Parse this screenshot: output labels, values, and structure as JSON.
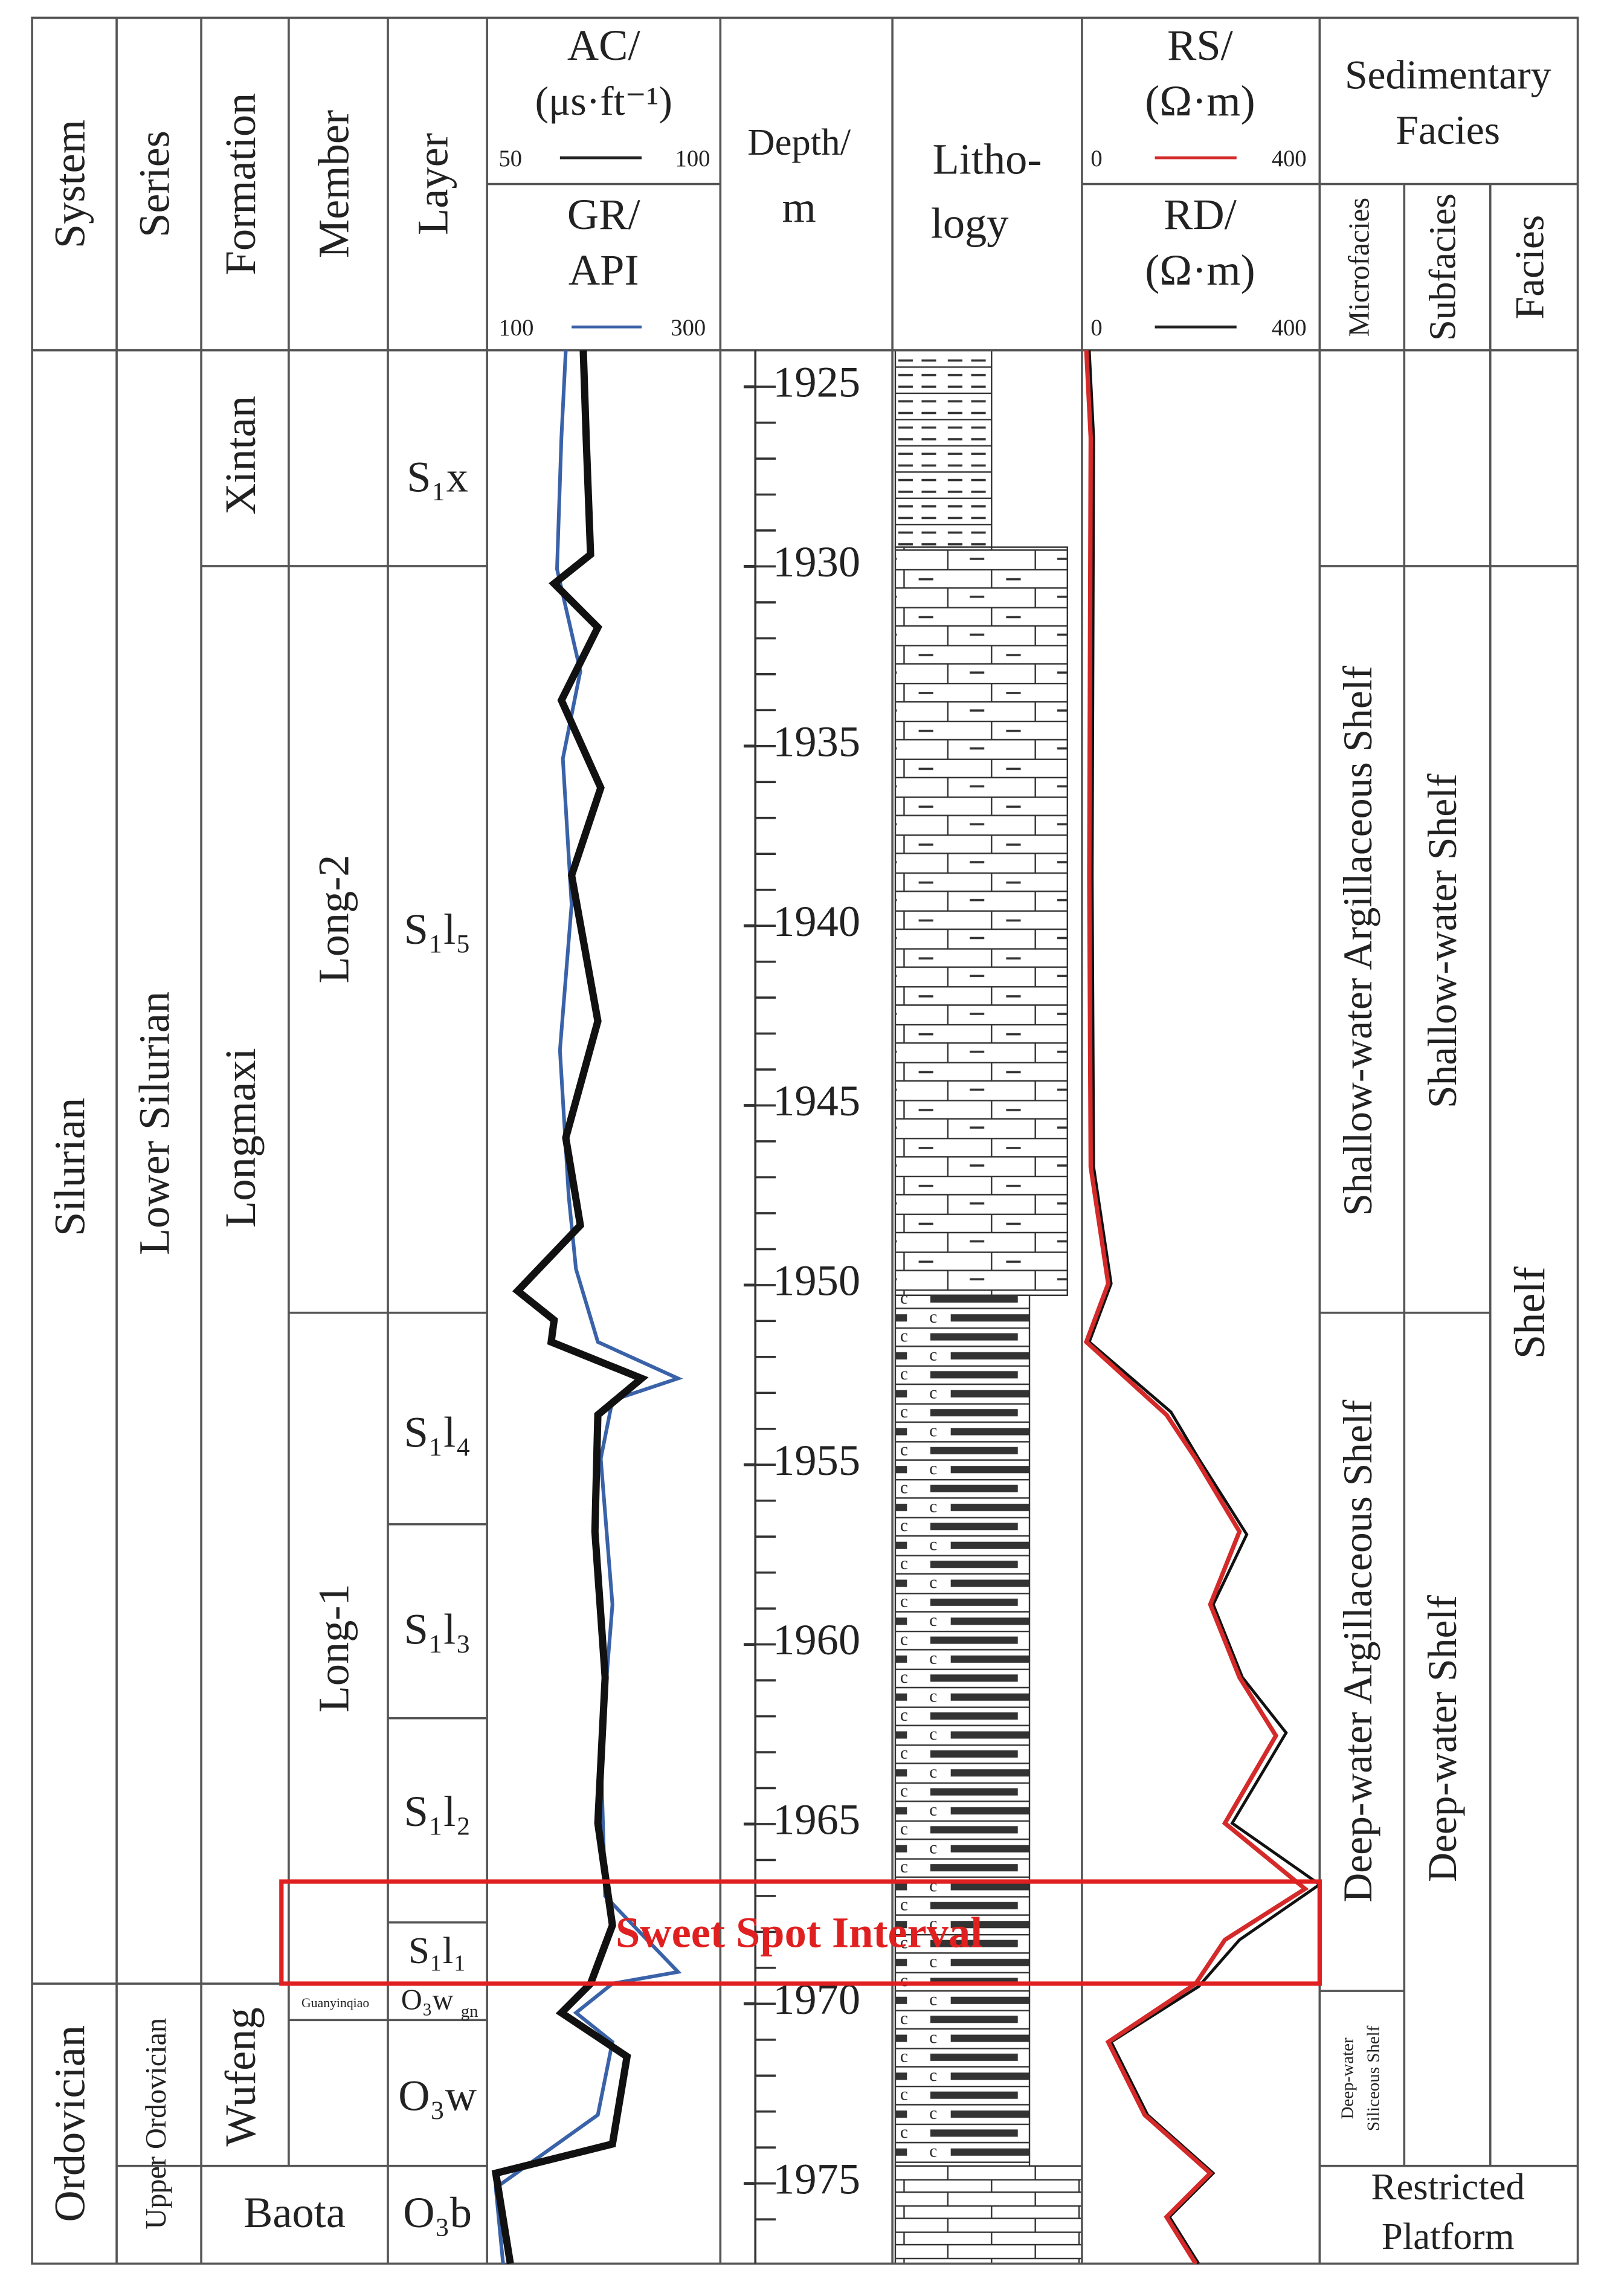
{
  "header": {
    "system": "System",
    "series": "Series",
    "formation": "Formation",
    "member": "Member",
    "layer": "Layer",
    "ac": "AC/",
    "ac_unit": "(μs·ft⁻¹)",
    "ac_min": "50",
    "ac_max": "100",
    "gr": "GR/",
    "gr_unit": "API",
    "gr_min": "100",
    "gr_max": "300",
    "depth": "Depth/",
    "depth_unit": "m",
    "lithology_1": "Litho-",
    "lithology_2": "logy",
    "rs": "RS/",
    "rs_unit": "(Ω·m)",
    "rs_min": "0",
    "rs_max": "400",
    "rd": "RD/",
    "rd_unit": "(Ω·m)",
    "rd_min": "0",
    "rd_max": "400",
    "sedimentary_1": "Sedimentary",
    "sedimentary_2": "Facies",
    "microfacies": "Microfacies",
    "subfacies": "Subfacies",
    "facies": "Facies"
  },
  "systems": [
    "Silurian",
    "Ordovician"
  ],
  "series": [
    "Lower Silurian",
    "Upper Ordovician"
  ],
  "formations": [
    "Xintan",
    "Longmaxi",
    "Wufeng",
    "Baota"
  ],
  "members": [
    "Long-2",
    "Long-1",
    "Guanyinqiao"
  ],
  "layers": [
    "S₁x",
    "S₁l₅",
    "S₁l₄",
    "S₁l₃",
    "S₁l₂",
    "S₁l₁",
    "O₃w",
    "O₃w",
    "O₃b"
  ],
  "layer_gn_sub": "gn",
  "depth_ticks": [
    1925,
    1930,
    1935,
    1940,
    1945,
    1950,
    1955,
    1960,
    1965,
    1970,
    1975
  ],
  "microfacies": [
    "Shallow-water Argillaceous Shelf",
    "Deep-water Argillaceous Shelf",
    "Deep-water",
    "Siliceous Shelf"
  ],
  "subfacies": [
    "Shallow-water Shelf",
    "Deep-water Shelf"
  ],
  "facies": [
    "Shelf"
  ],
  "restricted": [
    "Restricted",
    "Platform"
  ],
  "annotation": "Sweet Spot Interval"
}
